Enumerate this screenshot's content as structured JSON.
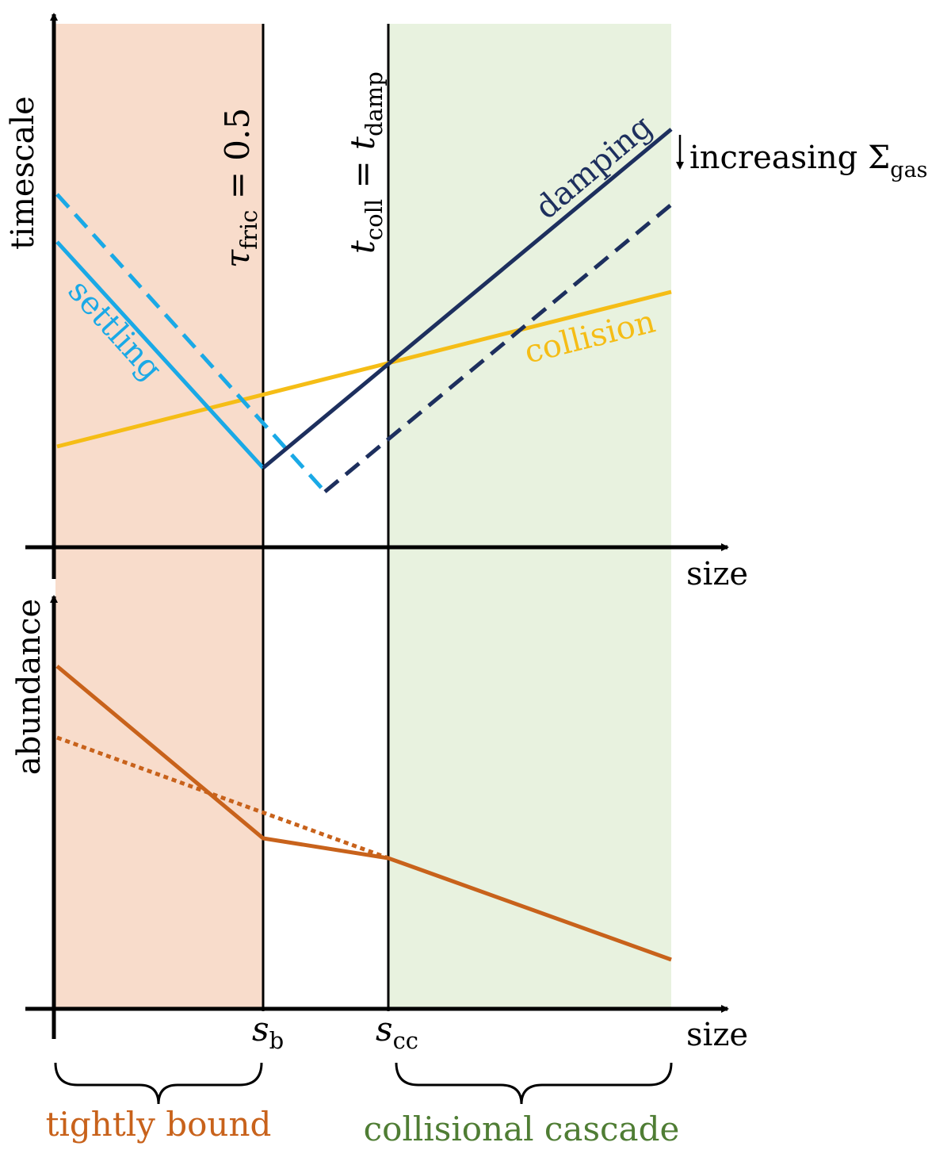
{
  "colors": {
    "tight_region": "#f8dccb",
    "cascade_region": "#e8f2df",
    "settling": "#1aa9e6",
    "damping": "#1d2f5e",
    "collision": "#f5bd16",
    "abundance": "#c8621b",
    "tight_label": "#c8621b",
    "cascade_label": "#4f7d34",
    "axis": "#000000"
  },
  "top_panel": {
    "ylabel": "timescale",
    "xlabel": "size",
    "line_labels": {
      "settling": "settling",
      "damping": "damping",
      "collision": "collision"
    },
    "annotation": {
      "prefix": "increasing ",
      "symbol": "Σ",
      "subscript": "gas"
    },
    "boundary_labels": {
      "tau": {
        "symbol": "τ",
        "subscript": "fric",
        "relation": " = 0.5"
      },
      "tcoll": {
        "lhs": "t",
        "lhs_sub": "coll",
        "eq": " = ",
        "rhs": "t",
        "rhs_sub": "damp"
      }
    }
  },
  "bottom_panel": {
    "ylabel": "abundance",
    "xlabel": "size",
    "tick_labels": {
      "sb": {
        "symbol": "s",
        "subscript": "b"
      },
      "scc": {
        "symbol": "s",
        "subscript": "cc"
      }
    }
  },
  "regions": {
    "tight": "tightly bound",
    "cascade": "collisional cascade"
  }
}
